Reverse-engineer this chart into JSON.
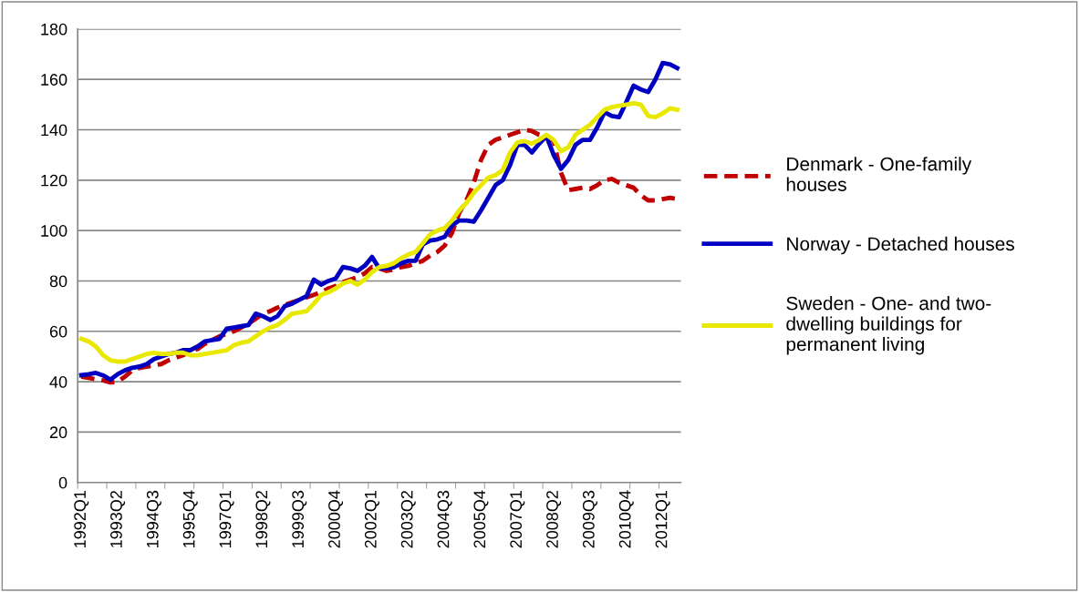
{
  "chart_data": {
    "type": "line",
    "categories": [
      "1992Q1",
      null,
      null,
      null,
      null,
      "1993Q2",
      null,
      null,
      null,
      null,
      "1994Q3",
      null,
      null,
      null,
      null,
      "1995Q4",
      null,
      null,
      null,
      null,
      "1997Q1",
      null,
      null,
      null,
      null,
      "1998Q2",
      null,
      null,
      null,
      null,
      "1999Q3",
      null,
      null,
      null,
      null,
      "2000Q4",
      null,
      null,
      null,
      null,
      "2002Q1",
      null,
      null,
      null,
      null,
      "2003Q2",
      null,
      null,
      null,
      null,
      "2004Q3",
      null,
      null,
      null,
      null,
      "2005Q4",
      null,
      null,
      null,
      null,
      "2007Q1",
      null,
      null,
      null,
      null,
      "2008Q2",
      null,
      null,
      null,
      null,
      "2009Q3",
      null,
      null,
      null,
      null,
      "2010Q4",
      null,
      null,
      null,
      null,
      "2012Q1",
      null,
      null
    ],
    "series": [
      {
        "name": "Denmark - One-family\nhouses",
        "color": "#c00000",
        "line_style": "dashed",
        "values": [
          42,
          41.5,
          41,
          40.5,
          39.7,
          40,
          42,
          44.5,
          45.5,
          46,
          46.5,
          47,
          48.5,
          49.5,
          50.5,
          52,
          53,
          55,
          56.5,
          58,
          59,
          60,
          61.5,
          63,
          65,
          67,
          68,
          69.4,
          70.5,
          71.5,
          72.5,
          73.5,
          74.5,
          75.5,
          77,
          78,
          79.5,
          80.5,
          81.5,
          83,
          85.5,
          85,
          84,
          84.5,
          85.5,
          86,
          87,
          88,
          90,
          91.5,
          94,
          99,
          107,
          112,
          119,
          128,
          134,
          136,
          137,
          138,
          139,
          140,
          139.5,
          138,
          137,
          135.5,
          123,
          116,
          116.5,
          117,
          116.5,
          118,
          120,
          120.5,
          119,
          118,
          117,
          114,
          112,
          112,
          112.5,
          113,
          112.5
        ]
      },
      {
        "name": "Norway - Detached houses",
        "color": "#0000c0",
        "line_style": "solid",
        "values": [
          42.6,
          43,
          43.5,
          42.5,
          40.8,
          43,
          44.5,
          45.5,
          46,
          47,
          49,
          50,
          51,
          51.5,
          52.5,
          52.5,
          54,
          56,
          56.5,
          57,
          61,
          61.5,
          62,
          62.5,
          67,
          66,
          64.5,
          66,
          70,
          71,
          72.5,
          74,
          80.5,
          78.5,
          80,
          81,
          85.5,
          85,
          84,
          86,
          89.5,
          85,
          85,
          85.5,
          87,
          88,
          88,
          94.5,
          96,
          96.5,
          97.5,
          102,
          104,
          104,
          103.5,
          108,
          113,
          118,
          120,
          126,
          134,
          134,
          131,
          134.5,
          137.5,
          130,
          124.5,
          128,
          134,
          136,
          136,
          141,
          147,
          145.5,
          145,
          151,
          157.5,
          156,
          155,
          160,
          166.5,
          166,
          164.5
        ]
      },
      {
        "name": "Sweden - One- and two-\ndwelling buildings for\npermanent living",
        "color": "#e8e800",
        "line_style": "solid",
        "values": [
          57,
          56,
          54,
          50.5,
          48.5,
          48,
          48,
          49,
          50,
          51,
          51.5,
          51,
          51,
          51.5,
          51.5,
          50.5,
          50.5,
          51,
          51.5,
          52,
          52.5,
          54.5,
          55.5,
          56,
          58,
          60,
          61.5,
          62.5,
          64.5,
          67,
          67.5,
          68,
          71,
          74.5,
          75.5,
          77,
          79,
          80,
          78.5,
          80.5,
          83.5,
          85.5,
          86,
          87,
          89,
          90.5,
          91.5,
          95,
          98.5,
          100,
          101,
          104,
          108,
          111,
          115,
          118,
          121,
          122,
          124,
          131,
          135,
          135.5,
          134.5,
          136,
          138,
          136,
          131.5,
          133,
          138,
          140,
          142,
          145,
          148,
          149,
          149.5,
          150,
          150.5,
          150,
          145.5,
          145,
          146.5,
          148.5,
          148
        ]
      }
    ],
    "ylim": [
      0,
      180
    ],
    "yticks": [
      0,
      20,
      40,
      60,
      80,
      100,
      120,
      140,
      160,
      180
    ],
    "grid": "y",
    "legend": "right",
    "marker": "none"
  }
}
